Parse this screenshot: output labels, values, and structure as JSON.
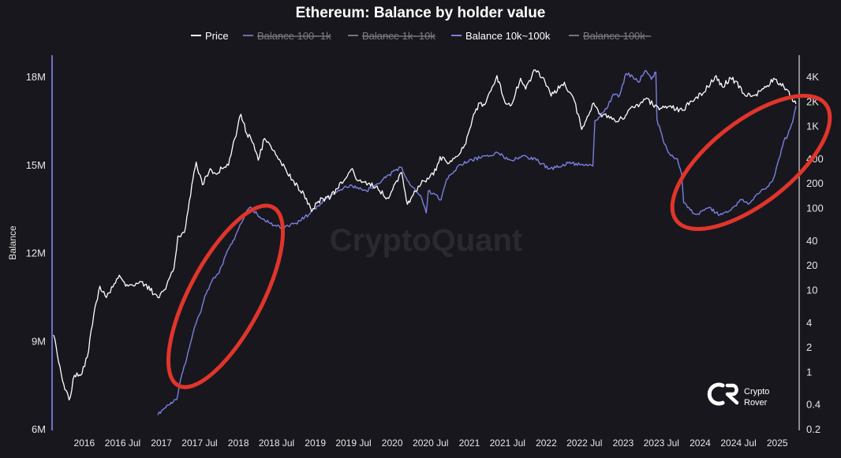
{
  "chart_data": {
    "type": "line",
    "title": "Ethereum: Balance by holder value",
    "ylabel_left": "Balance",
    "y_left_ticks": [
      "18M",
      "15M",
      "12M",
      "9M",
      "6M"
    ],
    "y_left_values": [
      18000000,
      15000000,
      12000000,
      9000000,
      6000000
    ],
    "y_right_scale": "log",
    "y_right_ticks": [
      "4K",
      "2K",
      "1K",
      "400",
      "200",
      "100",
      "40",
      "20",
      "10",
      "4",
      "2",
      "1",
      "0.4",
      "0.2"
    ],
    "y_right_values": [
      4000,
      2000,
      1000,
      400,
      200,
      100,
      40,
      20,
      10,
      4,
      2,
      1,
      0.4,
      0.2
    ],
    "x_ticks": [
      "2016",
      "2016 Jul",
      "2017",
      "2017 Jul",
      "2018",
      "2018 Jul",
      "2019",
      "2019 Jul",
      "2020",
      "2020 Jul",
      "2021",
      "2021 Jul",
      "2022",
      "2022 Jul",
      "2023",
      "2023 Jul",
      "2024",
      "2024 Jul",
      "2025"
    ],
    "x_tick_dates": [
      "2016-01-01",
      "2016-07-01",
      "2017-01-01",
      "2017-07-01",
      "2018-01-01",
      "2018-07-01",
      "2019-01-01",
      "2019-07-01",
      "2020-01-01",
      "2020-07-01",
      "2021-01-01",
      "2021-07-01",
      "2022-01-01",
      "2022-07-01",
      "2023-01-01",
      "2023-07-01",
      "2024-01-01",
      "2024-07-01",
      "2025-01-01"
    ],
    "x_range": [
      "2015-08-01",
      "2025-04-15"
    ],
    "legend": [
      {
        "name": "Price",
        "color": "#ffffff",
        "active": true
      },
      {
        "name": "Balance 100~1k",
        "color": "#7b7fe0",
        "active": false
      },
      {
        "name": "Balance 1k~10k",
        "color": "#8a8a8a",
        "active": false
      },
      {
        "name": "Balance 10k~100k",
        "color": "#7b7fe0",
        "active": true
      },
      {
        "name": "Balance 100k~",
        "color": "#8a8a8a",
        "active": false
      }
    ],
    "series": [
      {
        "name": "Price",
        "axis": "right",
        "color": "#ffffff",
        "points": [
          [
            "2015-08-08",
            2.8
          ],
          [
            "2015-09-01",
            1.3
          ],
          [
            "2015-10-01",
            0.6
          ],
          [
            "2015-10-21",
            0.45
          ],
          [
            "2015-11-15",
            0.9
          ],
          [
            "2015-12-15",
            0.9
          ],
          [
            "2016-01-15",
            1.5
          ],
          [
            "2016-02-15",
            5
          ],
          [
            "2016-03-15",
            11
          ],
          [
            "2016-04-15",
            8
          ],
          [
            "2016-06-15",
            15
          ],
          [
            "2016-07-15",
            11
          ],
          [
            "2016-09-15",
            12
          ],
          [
            "2016-10-15",
            11.5
          ],
          [
            "2016-12-15",
            8
          ],
          [
            "2017-01-15",
            10
          ],
          [
            "2017-03-01",
            18
          ],
          [
            "2017-03-20",
            45
          ],
          [
            "2017-04-20",
            50
          ],
          [
            "2017-05-25",
            190
          ],
          [
            "2017-06-15",
            360
          ],
          [
            "2017-07-15",
            190
          ],
          [
            "2017-08-20",
            300
          ],
          [
            "2017-09-15",
            260
          ],
          [
            "2017-10-15",
            300
          ],
          [
            "2017-11-15",
            330
          ],
          [
            "2017-12-15",
            700
          ],
          [
            "2018-01-13",
            1380
          ],
          [
            "2018-02-10",
            800
          ],
          [
            "2018-03-15",
            600
          ],
          [
            "2018-04-05",
            380
          ],
          [
            "2018-05-05",
            700
          ],
          [
            "2018-06-15",
            500
          ],
          [
            "2018-08-15",
            290
          ],
          [
            "2018-09-15",
            220
          ],
          [
            "2018-11-20",
            130
          ],
          [
            "2018-12-15",
            90
          ],
          [
            "2019-01-15",
            120
          ],
          [
            "2019-03-15",
            135
          ],
          [
            "2019-04-15",
            170
          ],
          [
            "2019-06-26",
            300
          ],
          [
            "2019-07-15",
            220
          ],
          [
            "2019-09-15",
            200
          ],
          [
            "2019-10-15",
            180
          ],
          [
            "2019-12-15",
            130
          ],
          [
            "2020-02-15",
            270
          ],
          [
            "2020-03-13",
            110
          ],
          [
            "2020-04-15",
            160
          ],
          [
            "2020-06-15",
            230
          ],
          [
            "2020-07-15",
            250
          ],
          [
            "2020-08-15",
            420
          ],
          [
            "2020-09-15",
            360
          ],
          [
            "2020-11-15",
            450
          ],
          [
            "2020-12-15",
            600
          ],
          [
            "2021-01-15",
            1200
          ],
          [
            "2021-02-20",
            1900
          ],
          [
            "2021-03-15",
            1800
          ],
          [
            "2021-05-12",
            4100
          ],
          [
            "2021-06-20",
            1900
          ],
          [
            "2021-07-20",
            1800
          ],
          [
            "2021-09-01",
            3800
          ],
          [
            "2021-09-25",
            2800
          ],
          [
            "2021-11-10",
            4800
          ],
          [
            "2021-12-15",
            3900
          ],
          [
            "2022-01-24",
            2300
          ],
          [
            "2022-03-28",
            3400
          ],
          [
            "2022-05-15",
            2000
          ],
          [
            "2022-06-18",
            900
          ],
          [
            "2022-07-15",
            1300
          ],
          [
            "2022-08-14",
            1900
          ],
          [
            "2022-09-15",
            1400
          ],
          [
            "2022-11-10",
            1200
          ],
          [
            "2022-12-31",
            1200
          ],
          [
            "2023-01-31",
            1600
          ],
          [
            "2023-03-15",
            1700
          ],
          [
            "2023-04-15",
            2100
          ],
          [
            "2023-06-15",
            1700
          ],
          [
            "2023-08-20",
            1650
          ],
          [
            "2023-10-15",
            1550
          ],
          [
            "2023-11-15",
            2000
          ],
          [
            "2023-12-15",
            2250
          ],
          [
            "2024-01-15",
            2500
          ],
          [
            "2024-03-12",
            4000
          ],
          [
            "2024-04-15",
            3000
          ],
          [
            "2024-05-25",
            3800
          ],
          [
            "2024-06-15",
            3500
          ],
          [
            "2024-08-05",
            2300
          ],
          [
            "2024-09-15",
            2350
          ],
          [
            "2024-11-15",
            3100
          ],
          [
            "2024-12-15",
            3800
          ],
          [
            "2025-01-15",
            3300
          ],
          [
            "2025-02-01",
            3000
          ],
          [
            "2025-02-20",
            2700
          ],
          [
            "2025-03-15",
            2000
          ],
          [
            "2025-03-31",
            1850
          ]
        ]
      },
      {
        "name": "Balance 10k~100k",
        "axis": "left",
        "color": "#7b7fe0",
        "points": [
          [
            "2016-12-15",
            6470000
          ],
          [
            "2017-01-15",
            6700000
          ],
          [
            "2017-02-15",
            6900000
          ],
          [
            "2017-03-15",
            7000000
          ],
          [
            "2017-04-01",
            7650000
          ],
          [
            "2017-05-01",
            8400000
          ],
          [
            "2017-06-01",
            9300000
          ],
          [
            "2017-07-01",
            9900000
          ],
          [
            "2017-08-01",
            10600000
          ],
          [
            "2017-09-01",
            11100000
          ],
          [
            "2017-10-01",
            11300000
          ],
          [
            "2017-11-01",
            11900000
          ],
          [
            "2017-12-01",
            12300000
          ],
          [
            "2018-01-15",
            13000000
          ],
          [
            "2018-02-01",
            13300000
          ],
          [
            "2018-03-01",
            13550000
          ],
          [
            "2018-04-01",
            13300000
          ],
          [
            "2018-05-01",
            13150000
          ],
          [
            "2018-06-01",
            13000000
          ],
          [
            "2018-07-01",
            12900000
          ],
          [
            "2018-08-01",
            12850000
          ],
          [
            "2018-10-01",
            13000000
          ],
          [
            "2018-12-01",
            13300000
          ],
          [
            "2019-01-15",
            13600000
          ],
          [
            "2019-03-01",
            13900000
          ],
          [
            "2019-05-01",
            14150000
          ],
          [
            "2019-06-15",
            14300000
          ],
          [
            "2019-07-15",
            14200000
          ],
          [
            "2019-09-01",
            14100000
          ],
          [
            "2019-10-15",
            14300000
          ],
          [
            "2019-12-01",
            14550000
          ],
          [
            "2020-01-15",
            14800000
          ],
          [
            "2020-02-15",
            14900000
          ],
          [
            "2020-03-13",
            14450000
          ],
          [
            "2020-04-15",
            14200000
          ],
          [
            "2020-05-15",
            13950000
          ],
          [
            "2020-06-10",
            13350000
          ],
          [
            "2020-06-20",
            14100000
          ],
          [
            "2020-07-20",
            14000000
          ],
          [
            "2020-08-20",
            13800000
          ],
          [
            "2020-09-15",
            14500000
          ],
          [
            "2020-10-15",
            14700000
          ],
          [
            "2020-11-15",
            15000000
          ],
          [
            "2021-01-15",
            15150000
          ],
          [
            "2021-03-15",
            15300000
          ],
          [
            "2021-05-15",
            15400000
          ],
          [
            "2021-07-15",
            15150000
          ],
          [
            "2021-09-15",
            15300000
          ],
          [
            "2021-11-15",
            15150000
          ],
          [
            "2022-01-15",
            14850000
          ],
          [
            "2022-02-15",
            14900000
          ],
          [
            "2022-04-15",
            15050000
          ],
          [
            "2022-06-15",
            15000000
          ],
          [
            "2022-08-10",
            14950000
          ],
          [
            "2022-08-20",
            16500000
          ],
          [
            "2022-10-15",
            16900000
          ],
          [
            "2022-11-15",
            17400000
          ],
          [
            "2022-12-10",
            17300000
          ],
          [
            "2023-01-15",
            18100000
          ],
          [
            "2023-02-15",
            18000000
          ],
          [
            "2023-03-15",
            17800000
          ],
          [
            "2023-04-15",
            18200000
          ],
          [
            "2023-05-15",
            17900000
          ],
          [
            "2023-06-05",
            18150000
          ],
          [
            "2023-06-10",
            16550000
          ],
          [
            "2023-07-15",
            15700000
          ],
          [
            "2023-08-15",
            15300000
          ],
          [
            "2023-09-15",
            15200000
          ],
          [
            "2023-10-05",
            14700000
          ],
          [
            "2023-10-15",
            13700000
          ],
          [
            "2023-11-15",
            13450000
          ],
          [
            "2023-12-15",
            13300000
          ],
          [
            "2024-01-15",
            13450000
          ],
          [
            "2024-02-15",
            13550000
          ],
          [
            "2024-03-15",
            13350000
          ],
          [
            "2024-04-15",
            13300000
          ],
          [
            "2024-05-15",
            13400000
          ],
          [
            "2024-06-15",
            13600000
          ],
          [
            "2024-07-15",
            13800000
          ],
          [
            "2024-08-15",
            13650000
          ],
          [
            "2024-09-15",
            13900000
          ],
          [
            "2024-10-15",
            14100000
          ],
          [
            "2024-11-15",
            14250000
          ],
          [
            "2024-12-15",
            14550000
          ],
          [
            "2025-01-15",
            15300000
          ],
          [
            "2025-02-01",
            15800000
          ],
          [
            "2025-02-20",
            16000000
          ],
          [
            "2025-03-15",
            16450000
          ],
          [
            "2025-03-31",
            17000000
          ]
        ]
      }
    ]
  },
  "watermark": "CryptoQuant",
  "logo_text": [
    "Crypto",
    "Rover"
  ],
  "colors": {
    "background": "#18171d",
    "price": "#ffffff",
    "balance": "#7b7fe0",
    "axis_line": "#6e6fd0",
    "highlight_ellipse": "#e0352b"
  }
}
